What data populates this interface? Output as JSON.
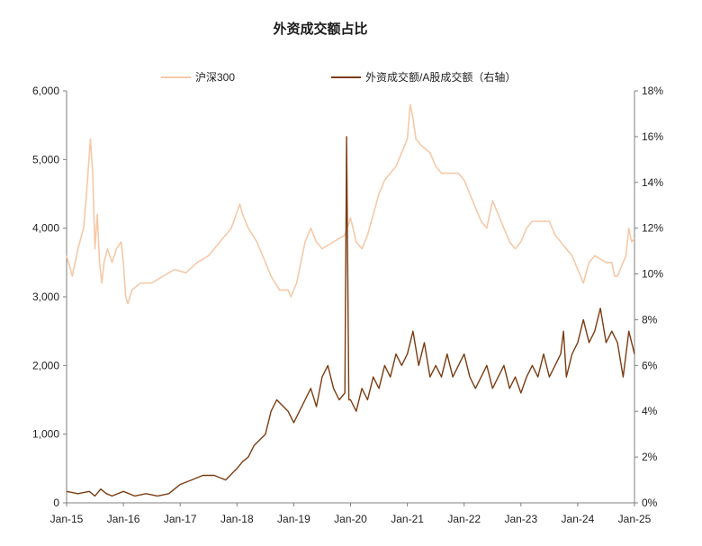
{
  "chart_data": {
    "type": "line",
    "title": "外资成交额占比",
    "x_ticks": [
      "Jan-15",
      "Jan-16",
      "Jan-17",
      "Jan-18",
      "Jan-19",
      "Jan-20",
      "Jan-21",
      "Jan-22",
      "Jan-23",
      "Jan-24",
      "Jan-25"
    ],
    "x_range": [
      2015.0,
      2025.0
    ],
    "y_left": {
      "ylim": [
        0,
        6000
      ],
      "ticks": [
        "0",
        "1,000",
        "2,000",
        "3,000",
        "4,000",
        "5,000",
        "6,000"
      ]
    },
    "y_right": {
      "ylim": [
        0,
        18
      ],
      "ticks": [
        "0%",
        "2%",
        "4%",
        "6%",
        "8%",
        "10%",
        "12%",
        "14%",
        "16%",
        "18%"
      ]
    },
    "grid": false,
    "legend_position": "top-center",
    "series": [
      {
        "name": "沪深300",
        "axis": "left",
        "color": "#f5c9a8",
        "x": [
          2015.0,
          2015.1,
          2015.2,
          2015.3,
          2015.35,
          2015.42,
          2015.46,
          2015.5,
          2015.54,
          2015.58,
          2015.62,
          2015.66,
          2015.72,
          2015.8,
          2015.88,
          2015.96,
          2016.0,
          2016.04,
          2016.08,
          2016.15,
          2016.3,
          2016.5,
          2016.7,
          2016.9,
          2017.1,
          2017.3,
          2017.5,
          2017.7,
          2017.9,
          2018.05,
          2018.1,
          2018.2,
          2018.35,
          2018.5,
          2018.6,
          2018.75,
          2018.9,
          2018.95,
          2019.05,
          2019.2,
          2019.3,
          2019.4,
          2019.5,
          2019.7,
          2019.9,
          2020.0,
          2020.1,
          2020.2,
          2020.3,
          2020.5,
          2020.6,
          2020.7,
          2020.8,
          2020.9,
          2021.0,
          2021.05,
          2021.1,
          2021.15,
          2021.25,
          2021.4,
          2021.5,
          2021.6,
          2021.7,
          2021.8,
          2021.9,
          2022.0,
          2022.1,
          2022.2,
          2022.3,
          2022.4,
          2022.5,
          2022.6,
          2022.7,
          2022.8,
          2022.9,
          2023.0,
          2023.1,
          2023.2,
          2023.3,
          2023.5,
          2023.6,
          2023.7,
          2023.8,
          2023.9,
          2024.0,
          2024.05,
          2024.1,
          2024.2,
          2024.3,
          2024.5,
          2024.6,
          2024.65,
          2024.7,
          2024.75,
          2024.8,
          2024.85,
          2024.9,
          2024.95,
          2025.0
        ],
        "values": [
          3600,
          3300,
          3700,
          4000,
          4500,
          5300,
          4800,
          3700,
          4200,
          3500,
          3200,
          3500,
          3700,
          3500,
          3700,
          3800,
          3500,
          3000,
          2900,
          3100,
          3200,
          3200,
          3300,
          3400,
          3350,
          3500,
          3600,
          3800,
          4000,
          4350,
          4200,
          4000,
          3800,
          3500,
          3300,
          3100,
          3100,
          3000,
          3200,
          3800,
          4000,
          3800,
          3700,
          3800,
          3900,
          4150,
          3800,
          3700,
          3900,
          4500,
          4700,
          4800,
          4900,
          5100,
          5300,
          5800,
          5600,
          5300,
          5200,
          5100,
          4900,
          4800,
          4800,
          4800,
          4800,
          4700,
          4500,
          4300,
          4100,
          4000,
          4400,
          4200,
          4000,
          3800,
          3700,
          3800,
          4000,
          4100,
          4100,
          4100,
          3900,
          3800,
          3700,
          3600,
          3400,
          3300,
          3200,
          3500,
          3600,
          3500,
          3500,
          3300,
          3300,
          3400,
          3500,
          3600,
          4000,
          3800,
          3850
        ]
      },
      {
        "name": "外资成交额/A股成交额（右轴）",
        "axis": "right",
        "color": "#7b3d12",
        "x": [
          2015.0,
          2015.2,
          2015.4,
          2015.5,
          2015.6,
          2015.7,
          2015.8,
          2016.0,
          2016.2,
          2016.4,
          2016.6,
          2016.8,
          2016.9,
          2017.0,
          2017.2,
          2017.4,
          2017.6,
          2017.8,
          2018.0,
          2018.1,
          2018.2,
          2018.3,
          2018.5,
          2018.6,
          2018.7,
          2018.9,
          2019.0,
          2019.1,
          2019.2,
          2019.3,
          2019.4,
          2019.5,
          2019.6,
          2019.7,
          2019.8,
          2019.9,
          2019.93,
          2019.97,
          2020.0,
          2020.1,
          2020.2,
          2020.3,
          2020.4,
          2020.5,
          2020.6,
          2020.7,
          2020.8,
          2020.9,
          2021.0,
          2021.1,
          2021.2,
          2021.3,
          2021.4,
          2021.5,
          2021.6,
          2021.7,
          2021.8,
          2021.9,
          2022.0,
          2022.1,
          2022.2,
          2022.3,
          2022.4,
          2022.5,
          2022.6,
          2022.7,
          2022.8,
          2022.9,
          2023.0,
          2023.1,
          2023.2,
          2023.3,
          2023.4,
          2023.5,
          2023.6,
          2023.7,
          2023.75,
          2023.8,
          2023.9,
          2024.0,
          2024.1,
          2024.2,
          2024.3,
          2024.4,
          2024.5,
          2024.6,
          2024.7,
          2024.8,
          2024.9,
          2025.0
        ],
        "values": [
          0.5,
          0.4,
          0.5,
          0.3,
          0.6,
          0.4,
          0.3,
          0.5,
          0.3,
          0.4,
          0.3,
          0.4,
          0.6,
          0.8,
          1.0,
          1.2,
          1.2,
          1.0,
          1.5,
          1.8,
          2.0,
          2.5,
          3.0,
          4.0,
          4.5,
          4.0,
          3.5,
          4.0,
          4.5,
          5.0,
          4.2,
          5.5,
          6.0,
          5.0,
          4.5,
          4.8,
          16.0,
          4.5,
          4.5,
          4.0,
          5.0,
          4.5,
          5.5,
          5.0,
          6.0,
          5.5,
          6.5,
          6.0,
          6.5,
          7.5,
          6.0,
          7.0,
          5.5,
          6.0,
          5.5,
          6.5,
          5.5,
          6.0,
          6.5,
          5.5,
          5.0,
          5.5,
          6.0,
          5.0,
          5.5,
          6.0,
          5.0,
          5.5,
          4.8,
          5.5,
          6.0,
          5.5,
          6.5,
          5.5,
          6.0,
          6.5,
          7.5,
          5.5,
          6.5,
          7.0,
          8.0,
          7.0,
          7.5,
          8.5,
          7.0,
          7.5,
          7.0,
          5.5,
          7.5,
          6.5
        ]
      }
    ]
  }
}
